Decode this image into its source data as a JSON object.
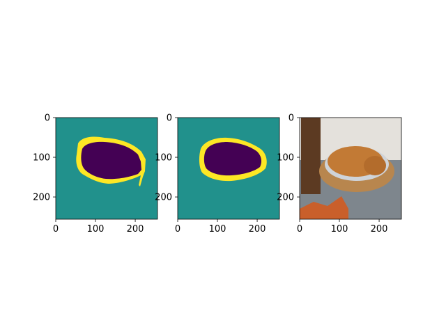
{
  "chart_data": [
    {
      "type": "heatmap",
      "panel": "predicted-mask",
      "xlim": [
        0,
        256
      ],
      "ylim": [
        256,
        0
      ],
      "xticks": [
        "0",
        "100",
        "200"
      ],
      "yticks": [
        "0",
        "100",
        "200"
      ],
      "colors": {
        "background": "#21918c",
        "object": "#440154",
        "border": "#fde725"
      }
    },
    {
      "type": "heatmap",
      "panel": "ground-truth-mask",
      "xlim": [
        0,
        256
      ],
      "ylim": [
        256,
        0
      ],
      "xticks": [
        "0",
        "100",
        "200"
      ],
      "yticks": [
        "0",
        "100",
        "200"
      ],
      "colors": {
        "background": "#21918c",
        "object": "#440154",
        "border": "#fde725"
      }
    },
    {
      "type": "image",
      "panel": "photo",
      "xlim": [
        0,
        256
      ],
      "ylim": [
        256,
        0
      ],
      "xticks": [
        "0",
        "100",
        "200"
      ],
      "yticks": [
        "0",
        "100",
        "200"
      ]
    }
  ]
}
